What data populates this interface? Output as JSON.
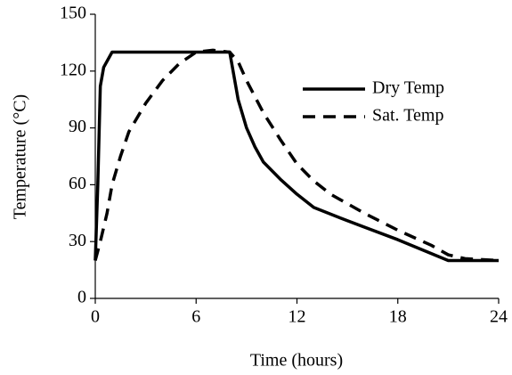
{
  "chart_data": {
    "type": "line",
    "xlabel": "Time (hours)",
    "ylabel": "Temperature (°C)",
    "xlim": [
      0,
      24
    ],
    "xticks": [
      0,
      6,
      12,
      18,
      24
    ],
    "ylim": [
      0,
      150
    ],
    "yticks": [
      0,
      30,
      60,
      90,
      120,
      150
    ],
    "legend": "upper right",
    "series": [
      {
        "name": "Dry Temp",
        "color": "#000000",
        "style": "solid",
        "x": [
          0,
          0.15,
          0.3,
          0.5,
          1,
          8,
          8.2,
          8.5,
          9,
          9.5,
          10,
          11,
          12,
          13,
          15,
          18,
          21,
          24
        ],
        "values": [
          20,
          60,
          112,
          122,
          130,
          130,
          120,
          105,
          90,
          80,
          72,
          63,
          55,
          48,
          41,
          31,
          20,
          20
        ]
      },
      {
        "name": "Sat. Temp",
        "color": "#000000",
        "style": "dashed",
        "x": [
          0,
          0.3,
          0.7,
          1,
          1.5,
          2,
          3,
          4,
          5,
          6,
          7,
          8,
          8.5,
          9,
          10,
          11,
          12,
          13,
          14,
          16,
          18,
          20,
          21,
          22,
          24
        ],
        "values": [
          20,
          30,
          45,
          60,
          75,
          88,
          103,
          115,
          124,
          130,
          131,
          130,
          125,
          115,
          98,
          84,
          71,
          62,
          55,
          45,
          36,
          28,
          23,
          21,
          20
        ]
      }
    ]
  }
}
